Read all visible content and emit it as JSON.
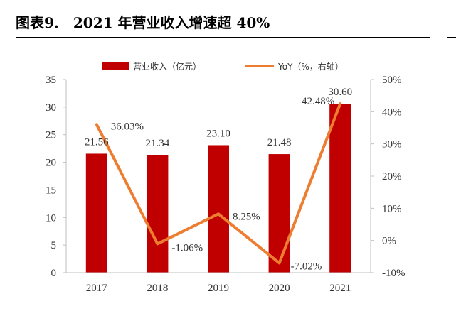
{
  "figure": {
    "number": "图表9.",
    "title": "2021 年营业收入增速超 40%"
  },
  "chart_data": {
    "type": "bar+line",
    "categories": [
      "2017",
      "2018",
      "2019",
      "2020",
      "2021"
    ],
    "series": [
      {
        "name": "营业收入（亿元）",
        "type": "bar",
        "axis": "left",
        "values": [
          21.56,
          21.34,
          23.1,
          21.48,
          30.6
        ],
        "labels": [
          "21.56",
          "21.34",
          "23.10",
          "21.48",
          "30.60"
        ],
        "color": "#c00000"
      },
      {
        "name": "YoY（%，右轴）",
        "type": "line",
        "axis": "right",
        "values": [
          36.03,
          -1.06,
          8.25,
          -7.02,
          42.48
        ],
        "labels": [
          "36.03%",
          "-1.06%",
          "8.25%",
          "-7.02%",
          "42.48%"
        ],
        "color": "#ed7d31"
      }
    ],
    "y_left": {
      "range": [
        0,
        35
      ],
      "ticks": [
        "0",
        "5",
        "10",
        "15",
        "20",
        "25",
        "30",
        "35"
      ]
    },
    "y_right": {
      "range": [
        -10,
        50
      ],
      "ticks": [
        "-10%",
        "0%",
        "10%",
        "20%",
        "30%",
        "40%",
        "50%"
      ]
    },
    "legend_position": "top",
    "grid": false
  }
}
